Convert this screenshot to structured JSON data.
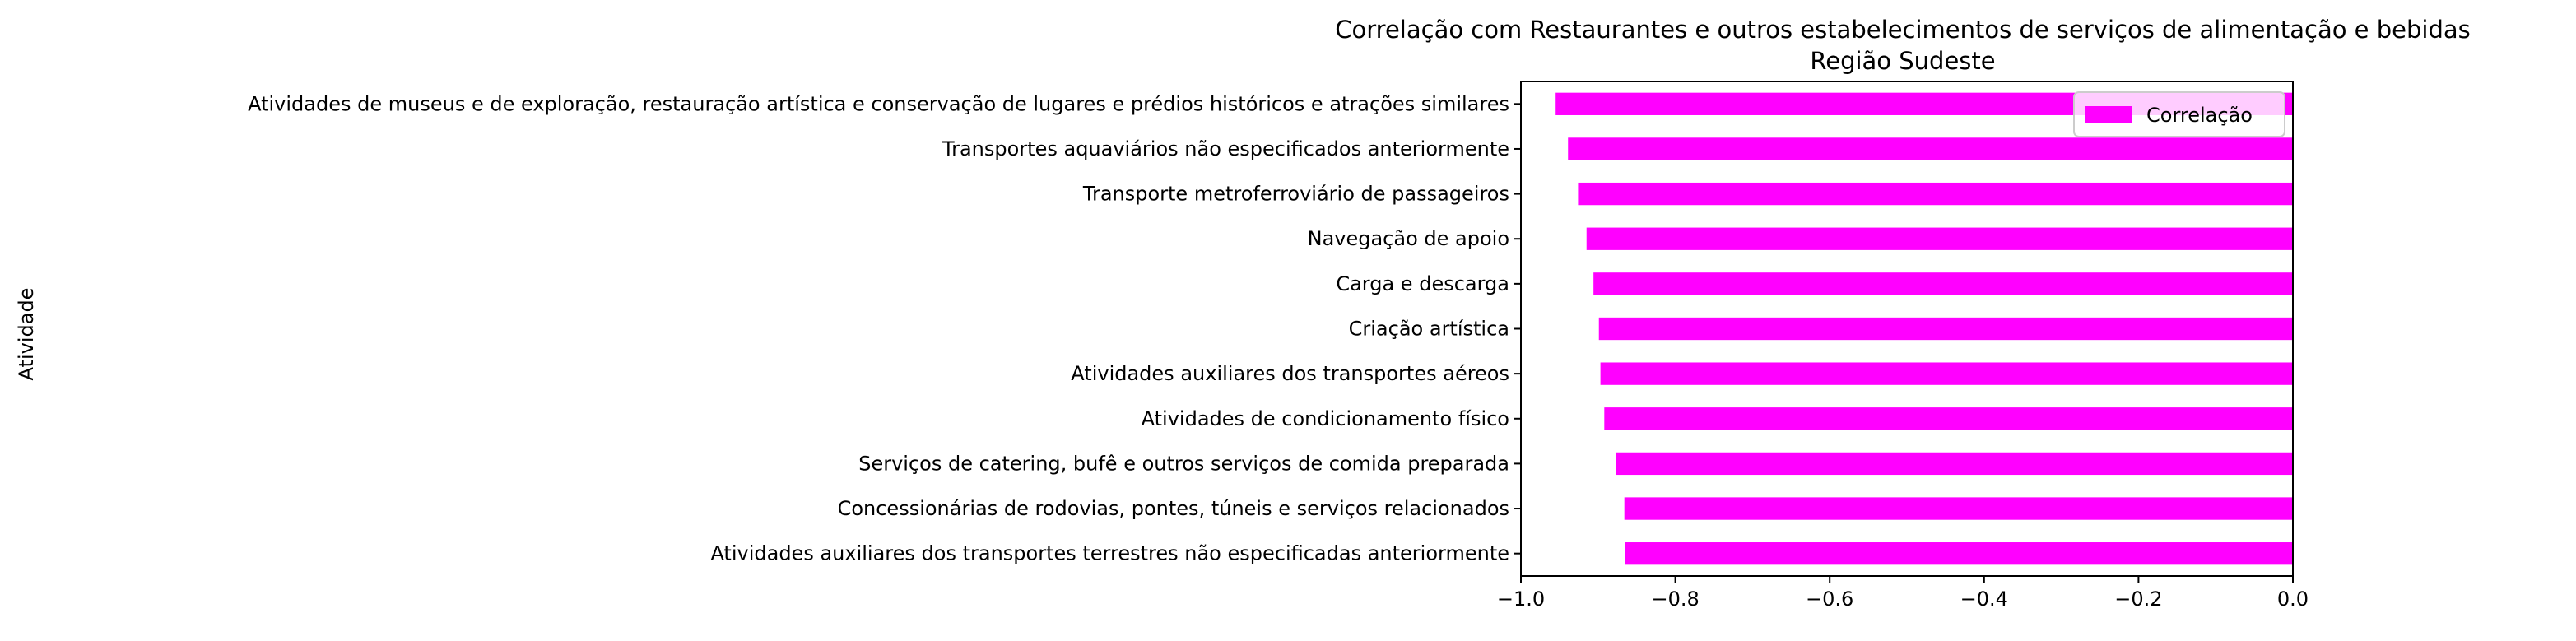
{
  "chart_data": {
    "type": "bar",
    "orientation": "horizontal",
    "title": "Correlação com Restaurantes e outros estabelecimentos de serviços de alimentação e bebidas",
    "subtitle": "Região Sudeste",
    "xlabel": "",
    "ylabel": "Atividade",
    "xlim": [
      -1.0,
      0.0
    ],
    "xticks": [
      -1.0,
      -0.8,
      -0.6,
      -0.4,
      -0.2,
      0.0
    ],
    "xtick_labels": [
      "−1.0",
      "−0.8",
      "−0.6",
      "−0.4",
      "−0.2",
      "0.0"
    ],
    "grid": false,
    "legend": {
      "position": "top-right",
      "entries": [
        "Correlação"
      ]
    },
    "categories": [
      "Atividades de museus e de exploração, restauração artística e conservação de lugares e prédios históricos e atrações similares",
      "Transportes aquaviários não especificados anteriormente",
      "Transporte metroferroviário de passageiros",
      "Navegação de apoio",
      "Carga e descarga",
      "Criação artística",
      "Atividades auxiliares dos transportes aéreos",
      "Atividades de condicionamento físico",
      "Serviços de catering, bufê e outros serviços de comida preparada",
      "Concessionárias de rodovias, pontes, túneis e serviços relacionados",
      "Atividades auxiliares dos transportes terrestres não especificadas anteriormente"
    ],
    "series": [
      {
        "name": "Correlação",
        "color": "#ff00ff",
        "values": [
          -0.955,
          -0.939,
          -0.926,
          -0.915,
          -0.906,
          -0.899,
          -0.897,
          -0.892,
          -0.877,
          -0.866,
          -0.865
        ]
      }
    ]
  }
}
